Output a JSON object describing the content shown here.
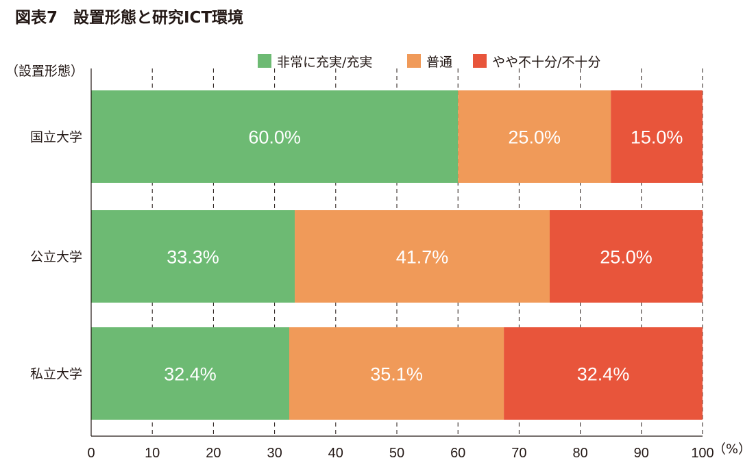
{
  "chart_data": {
    "type": "bar",
    "orientation": "horizontal",
    "stacked": true,
    "title": "図表7　設置形態と研究ICT環境",
    "ylabel": "（設置形態）",
    "xlabel": "（%）",
    "xlim": [
      0,
      100
    ],
    "xticks": [
      "0",
      "10",
      "20",
      "30",
      "40",
      "50",
      "60",
      "70",
      "80",
      "90",
      "100"
    ],
    "grid": "vertical-dashed",
    "legend_position": "top-right",
    "categories": [
      "国立大学",
      "公立大学",
      "私立大学"
    ],
    "series": [
      {
        "name": "非常に充実/充実",
        "color": "#6dba73",
        "values": [
          60.0,
          33.3,
          32.4
        ],
        "labels": [
          "60.0%",
          "33.3%",
          "32.4%"
        ]
      },
      {
        "name": "普通",
        "color": "#f09a59",
        "values": [
          25.0,
          41.7,
          35.1
        ],
        "labels": [
          "25.0%",
          "41.7%",
          "35.1%"
        ]
      },
      {
        "name": "やや不十分/不十分",
        "color": "#e8553b",
        "values": [
          15.0,
          25.0,
          32.4
        ],
        "labels": [
          "15.0%",
          "25.0%",
          "32.4%"
        ]
      }
    ]
  }
}
